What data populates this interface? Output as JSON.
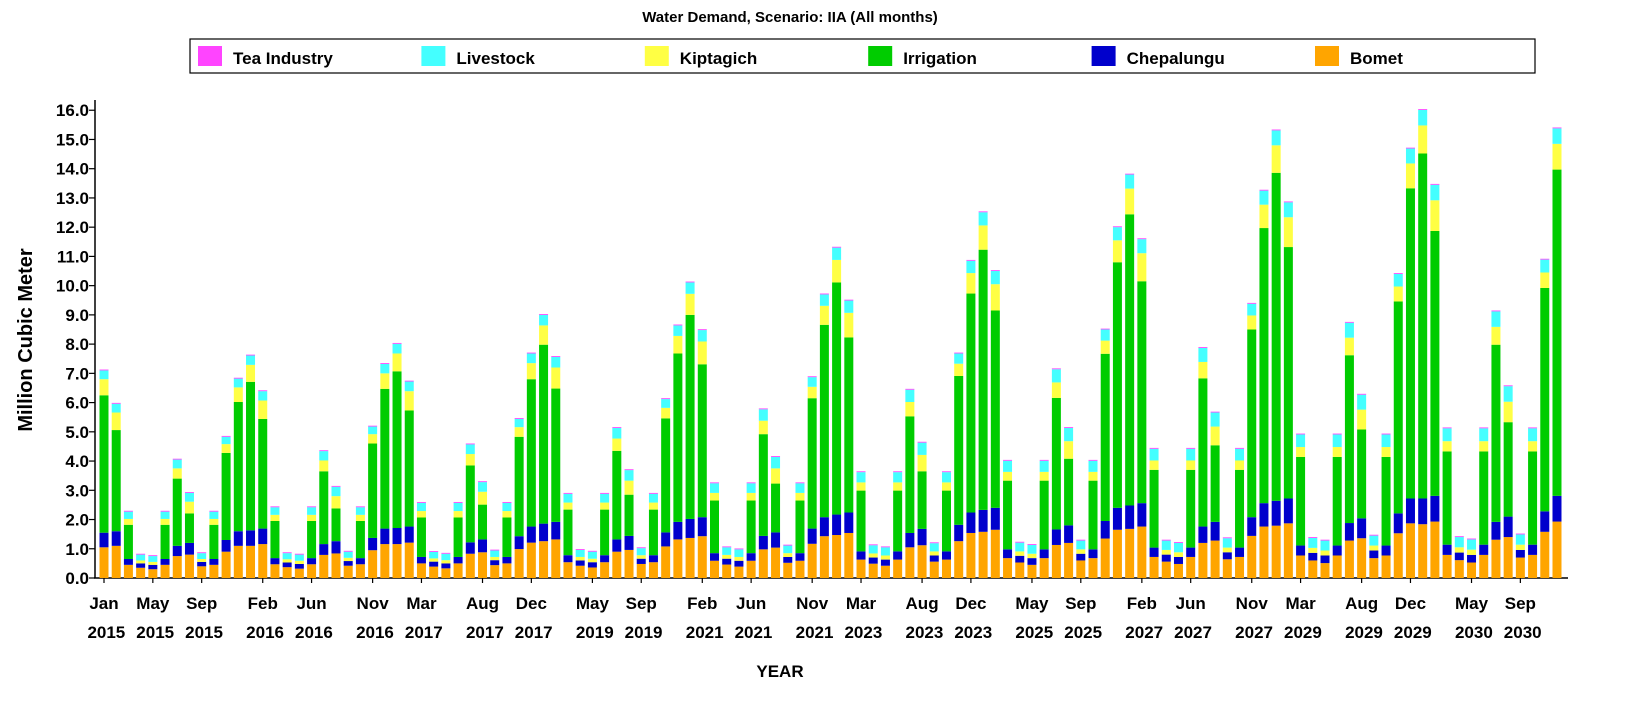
{
  "chart_data": {
    "type": "stacked_bar",
    "title": "Water Demand, Scenario: IIA (All months)",
    "x_label": "YEAR",
    "y_label": "Million Cubic Meter",
    "legend": "top",
    "categories": [
      "Jan 2015",
      null,
      null,
      null,
      "May 2015",
      null,
      null,
      null,
      "Sep 2015",
      null,
      null,
      null,
      null,
      "Feb 2016",
      null,
      null,
      null,
      "Jun 2016",
      null,
      null,
      null,
      null,
      "Nov 2016",
      null,
      null,
      null,
      "Mar 2017",
      null,
      null,
      null,
      null,
      "Aug 2017",
      null,
      null,
      null,
      "Dec 2017",
      null,
      null,
      null,
      null,
      "May 2019",
      null,
      null,
      null,
      "Sep 2019",
      null,
      null,
      null,
      null,
      "Feb 2021",
      null,
      null,
      null,
      "Jun 2021",
      null,
      null,
      null,
      null,
      "Nov 2021",
      null,
      null,
      null,
      "Mar 2023",
      null,
      null,
      null,
      null,
      "Aug 2023",
      null,
      null,
      null,
      "Dec 2023",
      null,
      null,
      null,
      null,
      "May 2025",
      null,
      null,
      null,
      "Sep 2025",
      null,
      null,
      null,
      null,
      "Feb 2027",
      null,
      null,
      null,
      "Jun 2027",
      null,
      null,
      null,
      null,
      "Nov 2027",
      null,
      null,
      null,
      "Mar 2029",
      null,
      null,
      null,
      null,
      "Aug 2029",
      null,
      null,
      null,
      "Dec 2029",
      null,
      null,
      null,
      null,
      "May 2030",
      null,
      null,
      null,
      "Sep 2030",
      null,
      null,
      null
    ],
    "ylim": [
      0,
      16.35
    ],
    "yticks": [
      {
        "value": 0,
        "label": "0.0"
      },
      {
        "value": 1,
        "label": "1.0"
      },
      {
        "value": 2,
        "label": "2.0"
      },
      {
        "value": 3,
        "label": "3.0"
      },
      {
        "value": 4,
        "label": "4.0"
      },
      {
        "value": 5,
        "label": "5.0"
      },
      {
        "value": 6,
        "label": "6.0"
      },
      {
        "value": 7,
        "label": "7.0"
      },
      {
        "value": 8,
        "label": "8.0"
      },
      {
        "value": 9,
        "label": "9.0"
      },
      {
        "value": 10,
        "label": "10.0"
      },
      {
        "value": 11,
        "label": "11.0"
      },
      {
        "value": 12,
        "label": "12.0"
      },
      {
        "value": 13,
        "label": "13.0"
      },
      {
        "value": 14,
        "label": "14.0"
      },
      {
        "value": 15,
        "label": "15.0"
      },
      {
        "value": 16,
        "label": "16.0"
      }
    ],
    "series": [
      {
        "name": "Tea Industry",
        "color": "#ff44ff",
        "values": [
          0.03,
          0.03,
          0.03,
          0.03,
          0.03,
          0.03,
          0.03,
          0.03,
          0.03,
          0.03,
          0.03,
          0.03,
          0.03,
          0.03,
          0.03,
          0.03,
          0.03,
          0.03,
          0.03,
          0.03,
          0.03,
          0.03,
          0.03,
          0.03,
          0.03,
          0.03,
          0.03,
          0.03,
          0.03,
          0.03,
          0.03,
          0.03,
          0.03,
          0.03,
          0.03,
          0.03,
          0.03,
          0.03,
          0.03,
          0.03,
          0.03,
          0.03,
          0.03,
          0.03,
          0.03,
          0.03,
          0.03,
          0.03,
          0.03,
          0.03,
          0.03,
          0.03,
          0.03,
          0.03,
          0.03,
          0.03,
          0.03,
          0.03,
          0.03,
          0.03,
          0.03,
          0.03,
          0.03,
          0.03,
          0.03,
          0.03,
          0.03,
          0.03,
          0.03,
          0.03,
          0.03,
          0.03,
          0.03,
          0.03,
          0.03,
          0.03,
          0.03,
          0.03,
          0.03,
          0.03,
          0.03,
          0.03,
          0.03,
          0.03,
          0.03,
          0.03,
          0.03,
          0.03,
          0.03,
          0.03,
          0.03,
          0.03,
          0.03,
          0.03,
          0.03,
          0.03,
          0.03,
          0.03,
          0.03,
          0.03,
          0.03,
          0.03,
          0.03,
          0.03,
          0.03,
          0.03,
          0.03,
          0.03,
          0.03,
          0.03,
          0.03,
          0.03,
          0.03,
          0.03,
          0.03,
          0.03,
          0.03,
          0.03,
          0.03,
          0.03
        ]
      },
      {
        "name": "Livestock",
        "color": "#44ffff",
        "values": [
          0.3,
          0.3,
          0.25,
          0.2,
          0.2,
          0.25,
          0.3,
          0.3,
          0.2,
          0.25,
          0.25,
          0.3,
          0.32,
          0.32,
          0.26,
          0.21,
          0.21,
          0.26,
          0.32,
          0.32,
          0.21,
          0.26,
          0.26,
          0.32,
          0.33,
          0.33,
          0.28,
          0.22,
          0.22,
          0.28,
          0.33,
          0.33,
          0.22,
          0.28,
          0.28,
          0.33,
          0.36,
          0.36,
          0.3,
          0.24,
          0.24,
          0.3,
          0.36,
          0.36,
          0.24,
          0.3,
          0.3,
          0.36,
          0.39,
          0.39,
          0.33,
          0.26,
          0.26,
          0.33,
          0.39,
          0.39,
          0.26,
          0.33,
          0.33,
          0.39,
          0.42,
          0.42,
          0.35,
          0.28,
          0.28,
          0.35,
          0.42,
          0.42,
          0.28,
          0.35,
          0.35,
          0.42,
          0.45,
          0.45,
          0.38,
          0.3,
          0.3,
          0.38,
          0.45,
          0.45,
          0.3,
          0.38,
          0.38,
          0.45,
          0.48,
          0.48,
          0.4,
          0.32,
          0.32,
          0.4,
          0.48,
          0.48,
          0.32,
          0.4,
          0.4,
          0.48,
          0.51,
          0.51,
          0.43,
          0.34,
          0.34,
          0.43,
          0.51,
          0.51,
          0.34,
          0.43,
          0.43,
          0.51,
          0.53,
          0.53,
          0.44,
          0.35,
          0.35,
          0.44,
          0.53,
          0.53,
          0.35,
          0.44,
          0.44,
          0.53
        ]
      },
      {
        "name": "Kiptagich",
        "color": "#ffff44",
        "values": [
          0.55,
          0.6,
          0.2,
          0.1,
          0.1,
          0.2,
          0.35,
          0.4,
          0.1,
          0.2,
          0.3,
          0.5,
          0.58,
          0.63,
          0.21,
          0.11,
          0.11,
          0.21,
          0.37,
          0.42,
          0.11,
          0.21,
          0.32,
          0.53,
          0.61,
          0.66,
          0.22,
          0.11,
          0.11,
          0.22,
          0.39,
          0.44,
          0.11,
          0.22,
          0.33,
          0.55,
          0.66,
          0.72,
          0.24,
          0.12,
          0.12,
          0.24,
          0.42,
          0.48,
          0.12,
          0.24,
          0.36,
          0.6,
          0.72,
          0.78,
          0.26,
          0.13,
          0.13,
          0.26,
          0.46,
          0.52,
          0.13,
          0.26,
          0.39,
          0.65,
          0.77,
          0.84,
          0.28,
          0.14,
          0.14,
          0.28,
          0.49,
          0.56,
          0.14,
          0.28,
          0.42,
          0.7,
          0.83,
          0.9,
          0.3,
          0.15,
          0.15,
          0.3,
          0.53,
          0.6,
          0.15,
          0.3,
          0.45,
          0.75,
          0.88,
          0.96,
          0.32,
          0.16,
          0.16,
          0.32,
          0.56,
          0.64,
          0.16,
          0.32,
          0.48,
          0.8,
          0.94,
          1.02,
          0.34,
          0.17,
          0.17,
          0.34,
          0.6,
          0.68,
          0.17,
          0.34,
          0.51,
          0.85,
          0.96,
          1.05,
          0.35,
          0.18,
          0.18,
          0.35,
          0.61,
          0.7,
          0.18,
          0.35,
          0.53,
          0.88
        ]
      },
      {
        "name": "Irrigation",
        "color": "#00cc00",
        "values": [
          4.7,
          3.46,
          1.17,
          0,
          0,
          1.17,
          2.3,
          1.01,
          0,
          1.17,
          2.98,
          4.42,
          5.08,
          3.75,
          1.27,
          0,
          0,
          1.27,
          2.49,
          1.12,
          0,
          1.27,
          3.23,
          4.78,
          5.36,
          3.97,
          1.35,
          0,
          0,
          1.35,
          2.63,
          1.19,
          0,
          1.35,
          3.4,
          5.04,
          6.12,
          4.56,
          1.56,
          0,
          0,
          1.56,
          3.03,
          1.41,
          0,
          1.56,
          3.9,
          5.76,
          6.98,
          5.23,
          1.8,
          0,
          0,
          1.8,
          3.48,
          1.67,
          0,
          1.8,
          4.46,
          6.58,
          7.94,
          5.99,
          2.08,
          0,
          0,
          2.08,
          3.99,
          1.97,
          0,
          2.08,
          5.09,
          7.49,
          8.9,
          6.75,
          2.35,
          0,
          0,
          2.35,
          4.5,
          2.28,
          0,
          2.35,
          5.72,
          8.4,
          9.96,
          7.59,
          2.66,
          0,
          0,
          2.66,
          5.07,
          2.62,
          0,
          2.66,
          6.42,
          9.41,
          11.22,
          8.6,
          3.03,
          0,
          0,
          3.03,
          5.74,
          3.04,
          0,
          3.03,
          7.25,
          10.61,
          11.8,
          9.06,
          3.19,
          0,
          0,
          3.19,
          6.06,
          3.23,
          0,
          3.19,
          7.64,
          11.16
        ]
      },
      {
        "name": "Chepalungu",
        "color": "#0000cc",
        "values": [
          0.5,
          0.5,
          0.2,
          0.15,
          0.15,
          0.2,
          0.35,
          0.4,
          0.15,
          0.2,
          0.4,
          0.5,
          0.53,
          0.53,
          0.21,
          0.16,
          0.16,
          0.21,
          0.37,
          0.42,
          0.16,
          0.21,
          0.42,
          0.53,
          0.55,
          0.55,
          0.22,
          0.17,
          0.17,
          0.22,
          0.39,
          0.44,
          0.17,
          0.22,
          0.44,
          0.55,
          0.6,
          0.6,
          0.24,
          0.18,
          0.18,
          0.24,
          0.42,
          0.48,
          0.18,
          0.24,
          0.48,
          0.6,
          0.65,
          0.65,
          0.26,
          0.2,
          0.2,
          0.26,
          0.46,
          0.52,
          0.2,
          0.26,
          0.52,
          0.65,
          0.7,
          0.7,
          0.28,
          0.21,
          0.21,
          0.28,
          0.49,
          0.56,
          0.21,
          0.28,
          0.56,
          0.7,
          0.75,
          0.75,
          0.3,
          0.23,
          0.23,
          0.3,
          0.53,
          0.6,
          0.23,
          0.3,
          0.6,
          0.75,
          0.8,
          0.8,
          0.32,
          0.24,
          0.24,
          0.32,
          0.56,
          0.64,
          0.24,
          0.32,
          0.64,
          0.8,
          0.85,
          0.85,
          0.34,
          0.26,
          0.26,
          0.34,
          0.6,
          0.68,
          0.26,
          0.34,
          0.68,
          0.85,
          0.88,
          0.88,
          0.35,
          0.26,
          0.26,
          0.35,
          0.61,
          0.7,
          0.26,
          0.35,
          0.7,
          0.88
        ]
      },
      {
        "name": "Bomet",
        "color": "#ffa500",
        "values": [
          1.05,
          1.1,
          0.45,
          0.35,
          0.3,
          0.45,
          0.75,
          0.8,
          0.4,
          0.45,
          0.9,
          1.1,
          1.1,
          1.16,
          0.47,
          0.37,
          0.32,
          0.47,
          0.79,
          0.84,
          0.42,
          0.47,
          0.95,
          1.16,
          1.16,
          1.21,
          0.5,
          0.39,
          0.33,
          0.5,
          0.83,
          0.88,
          0.44,
          0.5,
          0.99,
          1.21,
          1.26,
          1.32,
          0.54,
          0.42,
          0.36,
          0.54,
          0.9,
          0.96,
          0.48,
          0.54,
          1.08,
          1.32,
          1.37,
          1.43,
          0.59,
          0.46,
          0.39,
          0.59,
          0.98,
          1.04,
          0.52,
          0.59,
          1.17,
          1.43,
          1.47,
          1.54,
          0.63,
          0.49,
          0.42,
          0.63,
          1.05,
          1.12,
          0.56,
          0.63,
          1.26,
          1.54,
          1.58,
          1.65,
          0.68,
          0.53,
          0.45,
          0.68,
          1.13,
          1.2,
          0.6,
          0.68,
          1.35,
          1.65,
          1.68,
          1.76,
          0.72,
          0.56,
          0.48,
          0.72,
          1.2,
          1.28,
          0.64,
          0.72,
          1.44,
          1.76,
          1.79,
          1.87,
          0.77,
          0.6,
          0.51,
          0.77,
          1.28,
          1.36,
          0.68,
          0.77,
          1.53,
          1.87,
          1.84,
          1.93,
          0.79,
          0.61,
          0.53,
          0.79,
          1.31,
          1.4,
          0.7,
          0.79,
          1.58,
          1.93
        ]
      }
    ]
  }
}
